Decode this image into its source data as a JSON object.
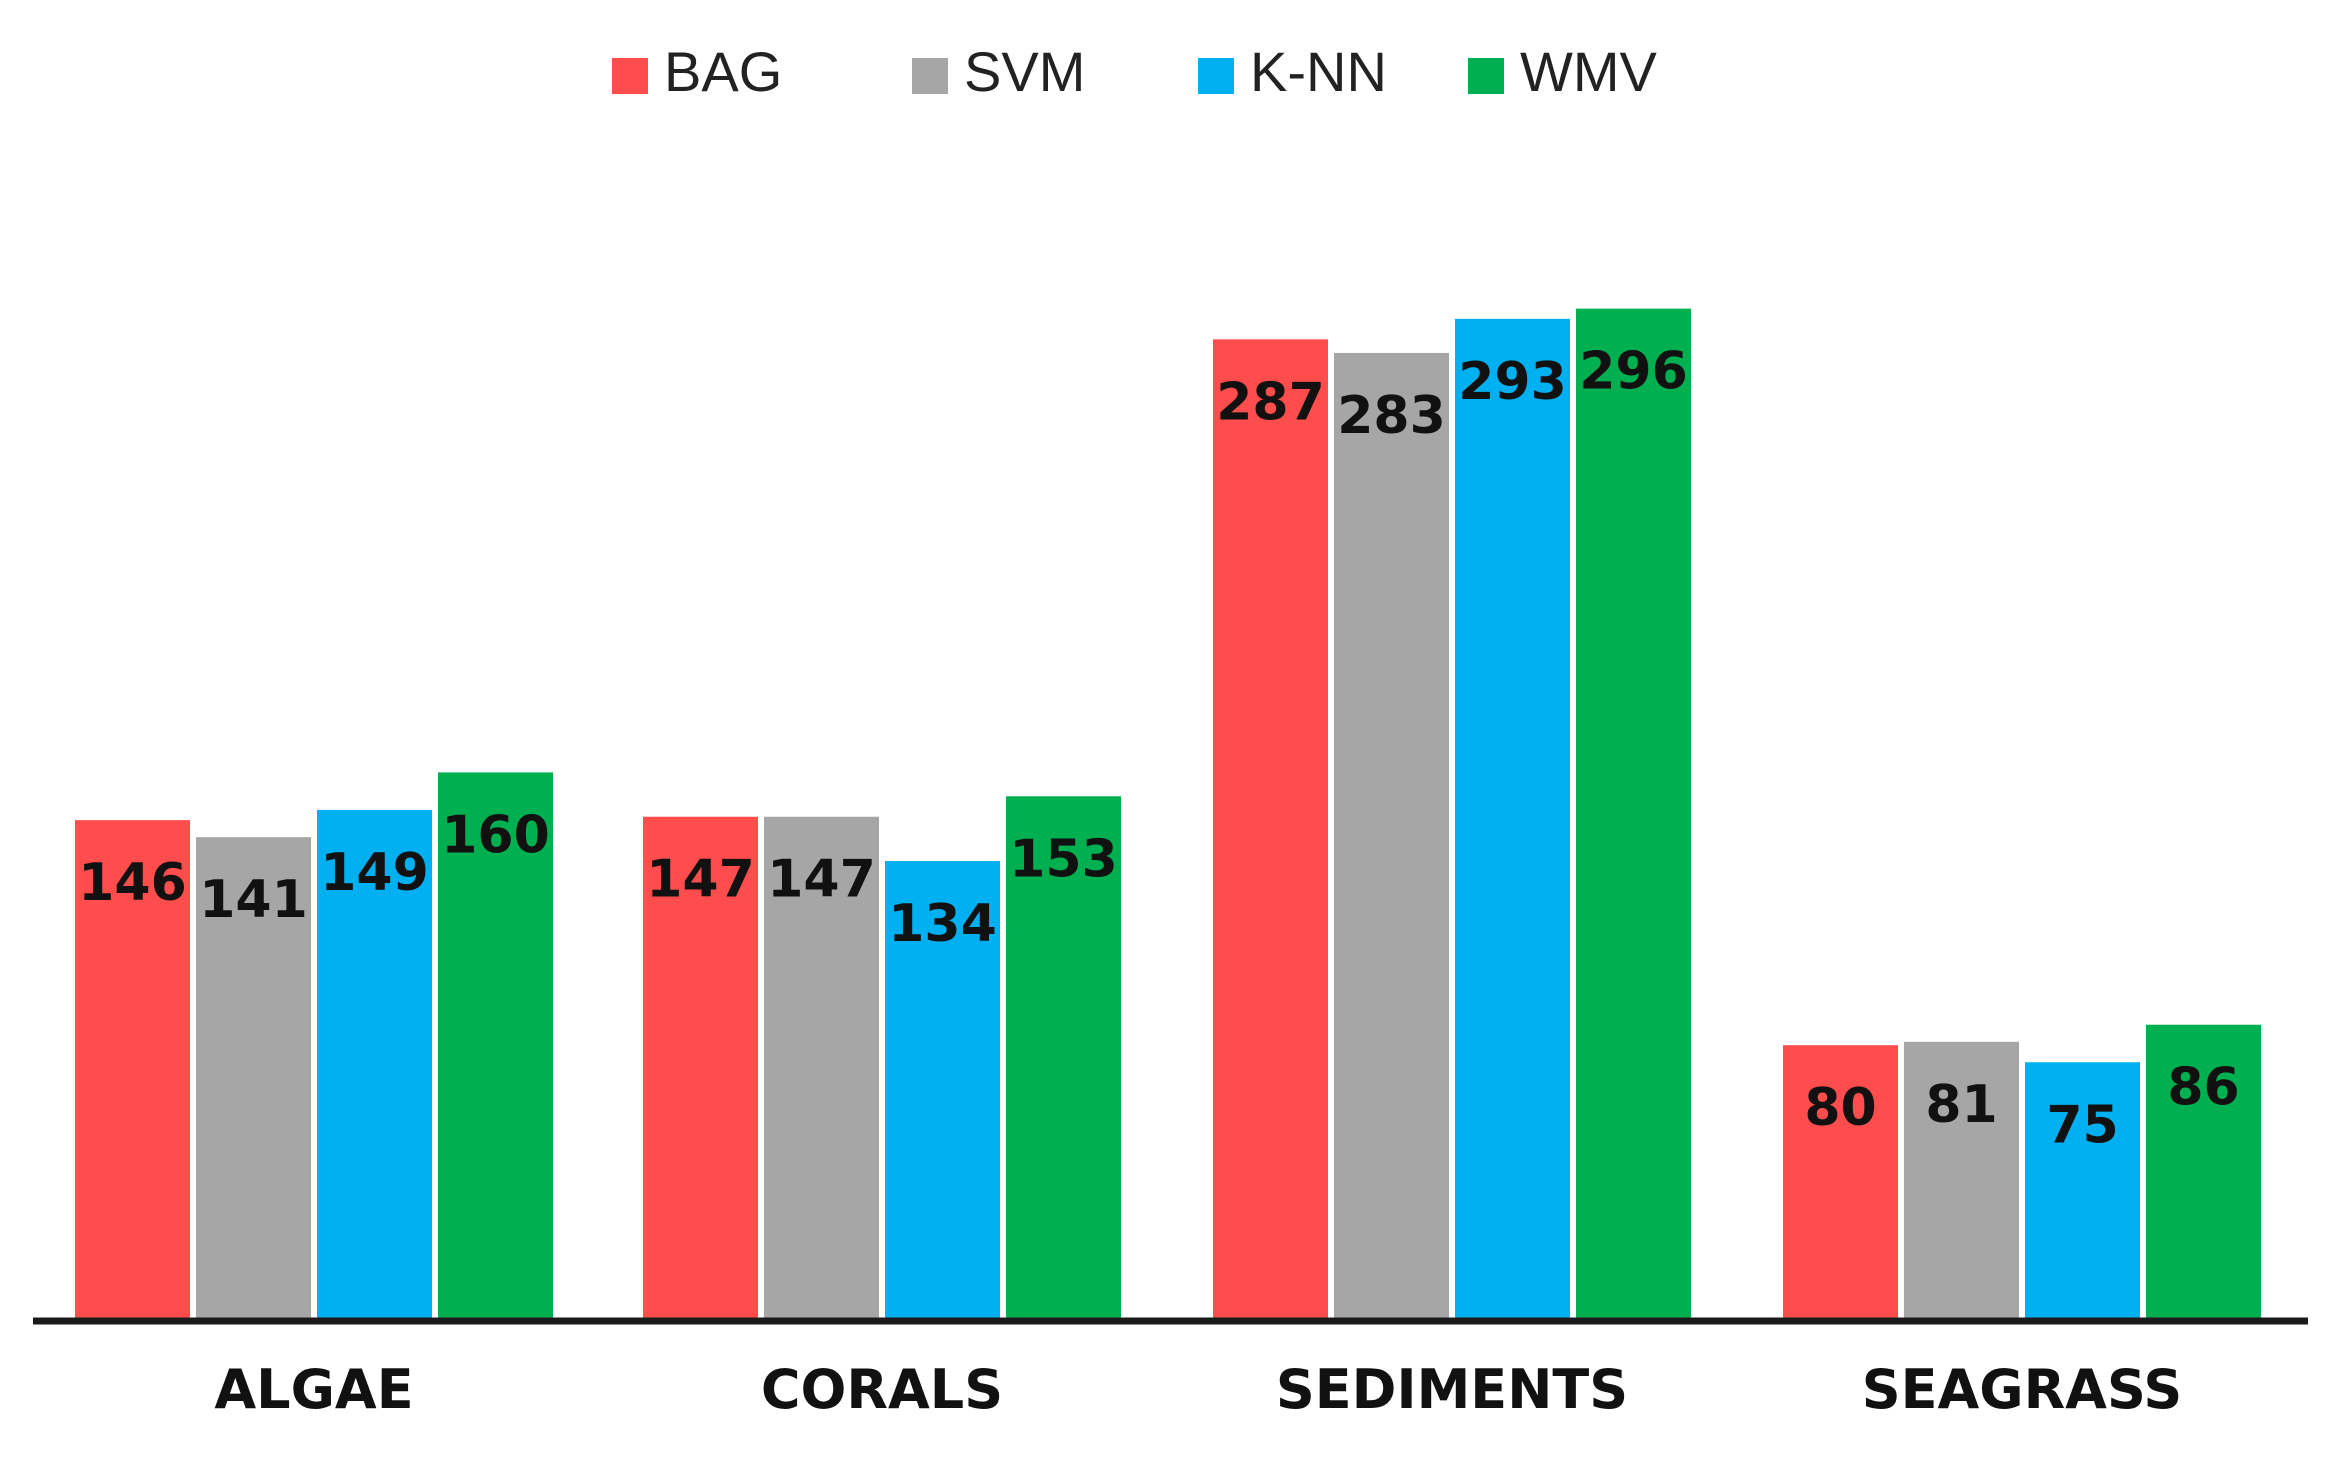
{
  "chart_data": {
    "type": "bar",
    "title": "",
    "xlabel": "",
    "ylabel": "",
    "ylim": [
      0,
      300
    ],
    "grid": false,
    "legend_position": "top-center",
    "categories": [
      "ALGAE",
      "CORALS",
      "SEDIMENTS",
      "SEAGRASS"
    ],
    "series": [
      {
        "name": "BAG",
        "color": "#ff4c4c",
        "values": [
          146,
          147,
          287,
          80
        ]
      },
      {
        "name": "SVM",
        "color": "#a6a6a6",
        "values": [
          141,
          147,
          283,
          81
        ]
      },
      {
        "name": "K-NN",
        "color": "#00b0f0",
        "values": [
          149,
          134,
          293,
          75
        ]
      },
      {
        "name": "WMV",
        "color": "#00b050",
        "values": [
          160,
          153,
          296,
          86
        ]
      }
    ]
  }
}
